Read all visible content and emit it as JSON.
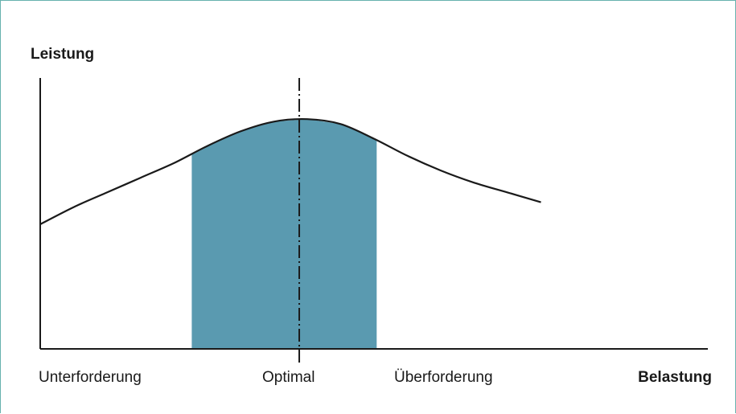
{
  "chart_data": {
    "type": "area",
    "ylabel": "Leistung",
    "xlabel": "Belastung",
    "region_labels": [
      "Unterforderung",
      "Optimal",
      "Überforderung"
    ],
    "curve": {
      "x": [
        0,
        0.05,
        0.1,
        0.15,
        0.2,
        0.25,
        0.3,
        0.35,
        0.4,
        0.45,
        0.5,
        0.55,
        0.6,
        0.65,
        0.7,
        0.75
      ],
      "y": [
        0.51,
        0.58,
        0.64,
        0.7,
        0.76,
        0.83,
        0.89,
        0.93,
        0.94,
        0.92,
        0.86,
        0.79,
        0.73,
        0.68,
        0.64,
        0.6
      ]
    },
    "optimal_band": {
      "x_start": 0.227,
      "x_end": 0.504
    },
    "optimal_line_x": 0.388,
    "xlim": [
      0,
      1
    ],
    "ylim": [
      0,
      1
    ],
    "colors": {
      "band": "#5a9ab0",
      "curve": "#1a1a1a",
      "axes": "#1a1a1a",
      "frame": "#67b2ae"
    }
  }
}
